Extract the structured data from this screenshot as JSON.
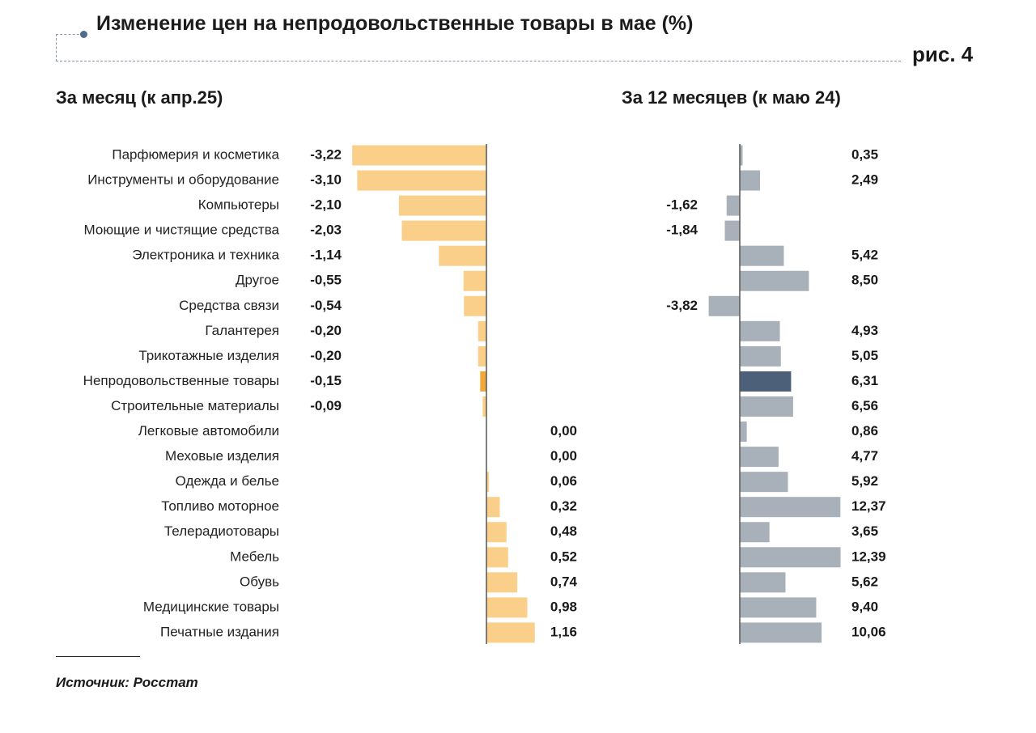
{
  "header": {
    "title": "Изменение цен на непродовольственные товары в мае (%)",
    "figure_label": "рис. 4"
  },
  "panels": {
    "left_title": "За месяц (к апр.25)",
    "right_title": "За 12 месяцев (к маю 24)"
  },
  "footer": {
    "source": "Источник: Росстат"
  },
  "colors": {
    "left_bar": "#f9cf8a",
    "left_highlight": "#f0a83a",
    "right_bar": "#a8b1b9",
    "right_highlight": "#4d607a",
    "axis": "#555555"
  },
  "chart_data": [
    {
      "type": "bar",
      "orientation": "horizontal",
      "title": "За месяц (к апр.25)",
      "categories": [
        "Парфюмерия и косметика",
        "Инструменты и оборудование",
        "Компьютеры",
        "Моющие и чистящие средства",
        "Электроника и техника",
        "Другое",
        "Средства связи",
        "Галантерея",
        "Трикотажные изделия",
        "Непродовольственные товары",
        "Строительные материалы",
        "Легковые автомобили",
        "Меховые изделия",
        "Одежда и белье",
        "Топливо моторное",
        "Телерадиотовары",
        "Мебель",
        "Обувь",
        "Медицинские товары",
        "Печатные издания"
      ],
      "values": [
        -3.22,
        -3.1,
        -2.1,
        -2.03,
        -1.14,
        -0.55,
        -0.54,
        -0.2,
        -0.2,
        -0.15,
        -0.09,
        0.0,
        0.0,
        0.06,
        0.32,
        0.48,
        0.52,
        0.74,
        0.98,
        1.16
      ],
      "labels": [
        "-3,22",
        "-3,10",
        "-2,10",
        "-2,03",
        "-1,14",
        "-0,55",
        "-0,54",
        "-0,20",
        "-0,20",
        "-0,15",
        "-0,09",
        "0,00",
        "0,00",
        "0,06",
        "0,32",
        "0,48",
        "0,52",
        "0,74",
        "0,98",
        "1,16"
      ],
      "highlight": "Непродовольственные товары"
    },
    {
      "type": "bar",
      "orientation": "horizontal",
      "title": "За 12 месяцев (к маю 24)",
      "categories": [
        "Парфюмерия и косметика",
        "Инструменты и оборудование",
        "Компьютеры",
        "Моющие и чистящие средства",
        "Электроника и техника",
        "Другое",
        "Средства связи",
        "Галантерея",
        "Трикотажные изделия",
        "Непродовольственные товары",
        "Строительные материалы",
        "Легковые автомобили",
        "Меховые изделия",
        "Одежда и белье",
        "Топливо моторное",
        "Телерадиотовары",
        "Мебель",
        "Обувь",
        "Медицинские товары",
        "Печатные издания"
      ],
      "values": [
        0.35,
        2.49,
        -1.62,
        -1.84,
        5.42,
        8.5,
        -3.82,
        4.93,
        5.05,
        6.31,
        6.56,
        0.86,
        4.77,
        5.92,
        12.37,
        3.65,
        12.39,
        5.62,
        9.4,
        10.06
      ],
      "labels": [
        "0,35",
        "2,49",
        "-1,62",
        "-1,84",
        "5,42",
        "8,50",
        "-3,82",
        "4,93",
        "5,05",
        "6,31",
        "6,56",
        "0,86",
        "4,77",
        "5,92",
        "12,37",
        "3,65",
        "12,39",
        "5,62",
        "9,40",
        "10,06"
      ],
      "highlight": "Непродовольственные товары"
    }
  ]
}
